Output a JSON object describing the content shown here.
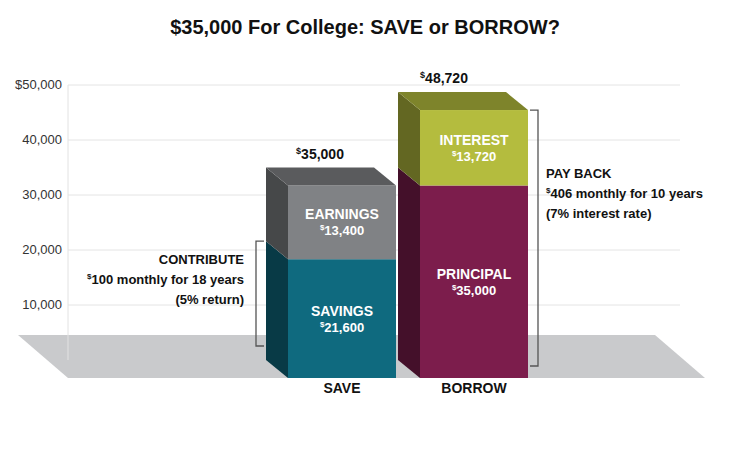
{
  "chart_data": {
    "type": "bar",
    "title": "$35,000 For College: SAVE or BORROW?",
    "categories": [
      "SAVE",
      "BORROW"
    ],
    "stacked": true,
    "data_labels": true,
    "grid": true,
    "ylim": [
      0,
      50000
    ],
    "yticks": [
      {
        "value": 10000,
        "label": "10,000"
      },
      {
        "value": 20000,
        "label": "20,000"
      },
      {
        "value": 30000,
        "label": "30,000"
      },
      {
        "value": 40000,
        "label": "40,000"
      },
      {
        "value": 50000,
        "label": "$50,000"
      }
    ],
    "series": [
      {
        "name": "SAVINGS",
        "color": "#0f6a7f",
        "values": [
          21600,
          null
        ],
        "value_labels": [
          "$21,600",
          null
        ]
      },
      {
        "name": "EARNINGS",
        "color": "#808285",
        "values": [
          13400,
          null
        ],
        "value_labels": [
          "$13,400",
          null
        ]
      },
      {
        "name": "PRINCIPAL",
        "color": "#7c1d4c",
        "values": [
          null,
          35000
        ],
        "value_labels": [
          null,
          "$35,000"
        ]
      },
      {
        "name": "INTEREST",
        "color": "#b4bc3e",
        "values": [
          null,
          13720
        ],
        "value_labels": [
          null,
          "$13,720"
        ]
      }
    ],
    "totals": [
      35000,
      48720
    ],
    "total_labels": [
      "$35,000",
      "$48,720"
    ],
    "annotations": [
      {
        "category": "SAVE",
        "series": [
          "SAVINGS"
        ],
        "lines": [
          "CONTRIBUTE",
          "$100 monthly for 18 years",
          "(5% return)"
        ]
      },
      {
        "category": "BORROW",
        "series": [
          "PRINCIPAL",
          "INTEREST"
        ],
        "lines": [
          "PAY BACK",
          "$406 monthly for 10 years",
          "(7% interest rate)"
        ]
      }
    ]
  }
}
